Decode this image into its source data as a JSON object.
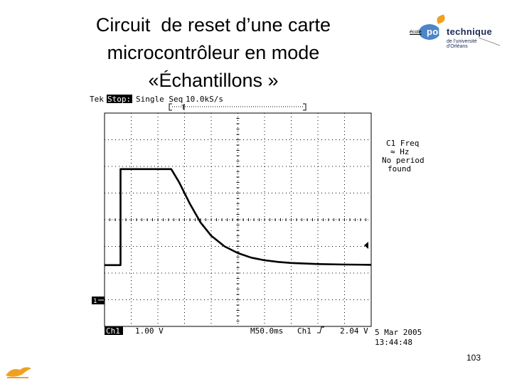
{
  "slide": {
    "title_lines": [
      "Circuit  de reset d’une carte",
      "microcontrôleur en mode",
      "«Échantillons »"
    ],
    "page_number": "103"
  },
  "logo": {
    "ecole": "école",
    "word_a": "poly",
    "word_b": "technique",
    "subtitle": "de l'université d'Orléans"
  },
  "scope": {
    "brand": "Tek",
    "status": "Stop:",
    "mode": "Single Seq",
    "sample_rate": "10.0kS/s",
    "measure_lines": [
      "C1 Freq",
      "≈ Hz",
      "No period",
      "found"
    ],
    "ch1_label": "Ch1",
    "volts_div": "1.00 V",
    "timebase": "M50.0ms",
    "trigger_source": "Ch1",
    "trigger_level": "2.04 V",
    "date": "5 Mar 2005",
    "time": "13:44:48",
    "marker_ch1": "1",
    "marker_trigger": "T"
  },
  "chart_data": {
    "type": "line",
    "x_unit": "div",
    "y_unit": "div",
    "xlim": [
      0,
      10
    ],
    "ylim": [
      -4,
      4
    ],
    "grid": true,
    "divisions": {
      "x": 10,
      "y": 8
    },
    "trigger_level_div": 0.6,
    "series": [
      {
        "x": [
          0.0,
          0.6,
          0.6,
          2.5,
          2.8,
          3.2,
          3.6,
          4.0,
          4.5,
          5.0,
          5.5,
          6.0,
          6.5,
          7.0,
          8.0,
          9.0,
          10.0
        ],
        "y": [
          -1.7,
          -1.7,
          1.9,
          1.9,
          1.4,
          0.6,
          -0.1,
          -0.6,
          -1.0,
          -1.25,
          -1.42,
          -1.52,
          -1.58,
          -1.62,
          -1.66,
          -1.68,
          -1.69
        ]
      }
    ]
  }
}
